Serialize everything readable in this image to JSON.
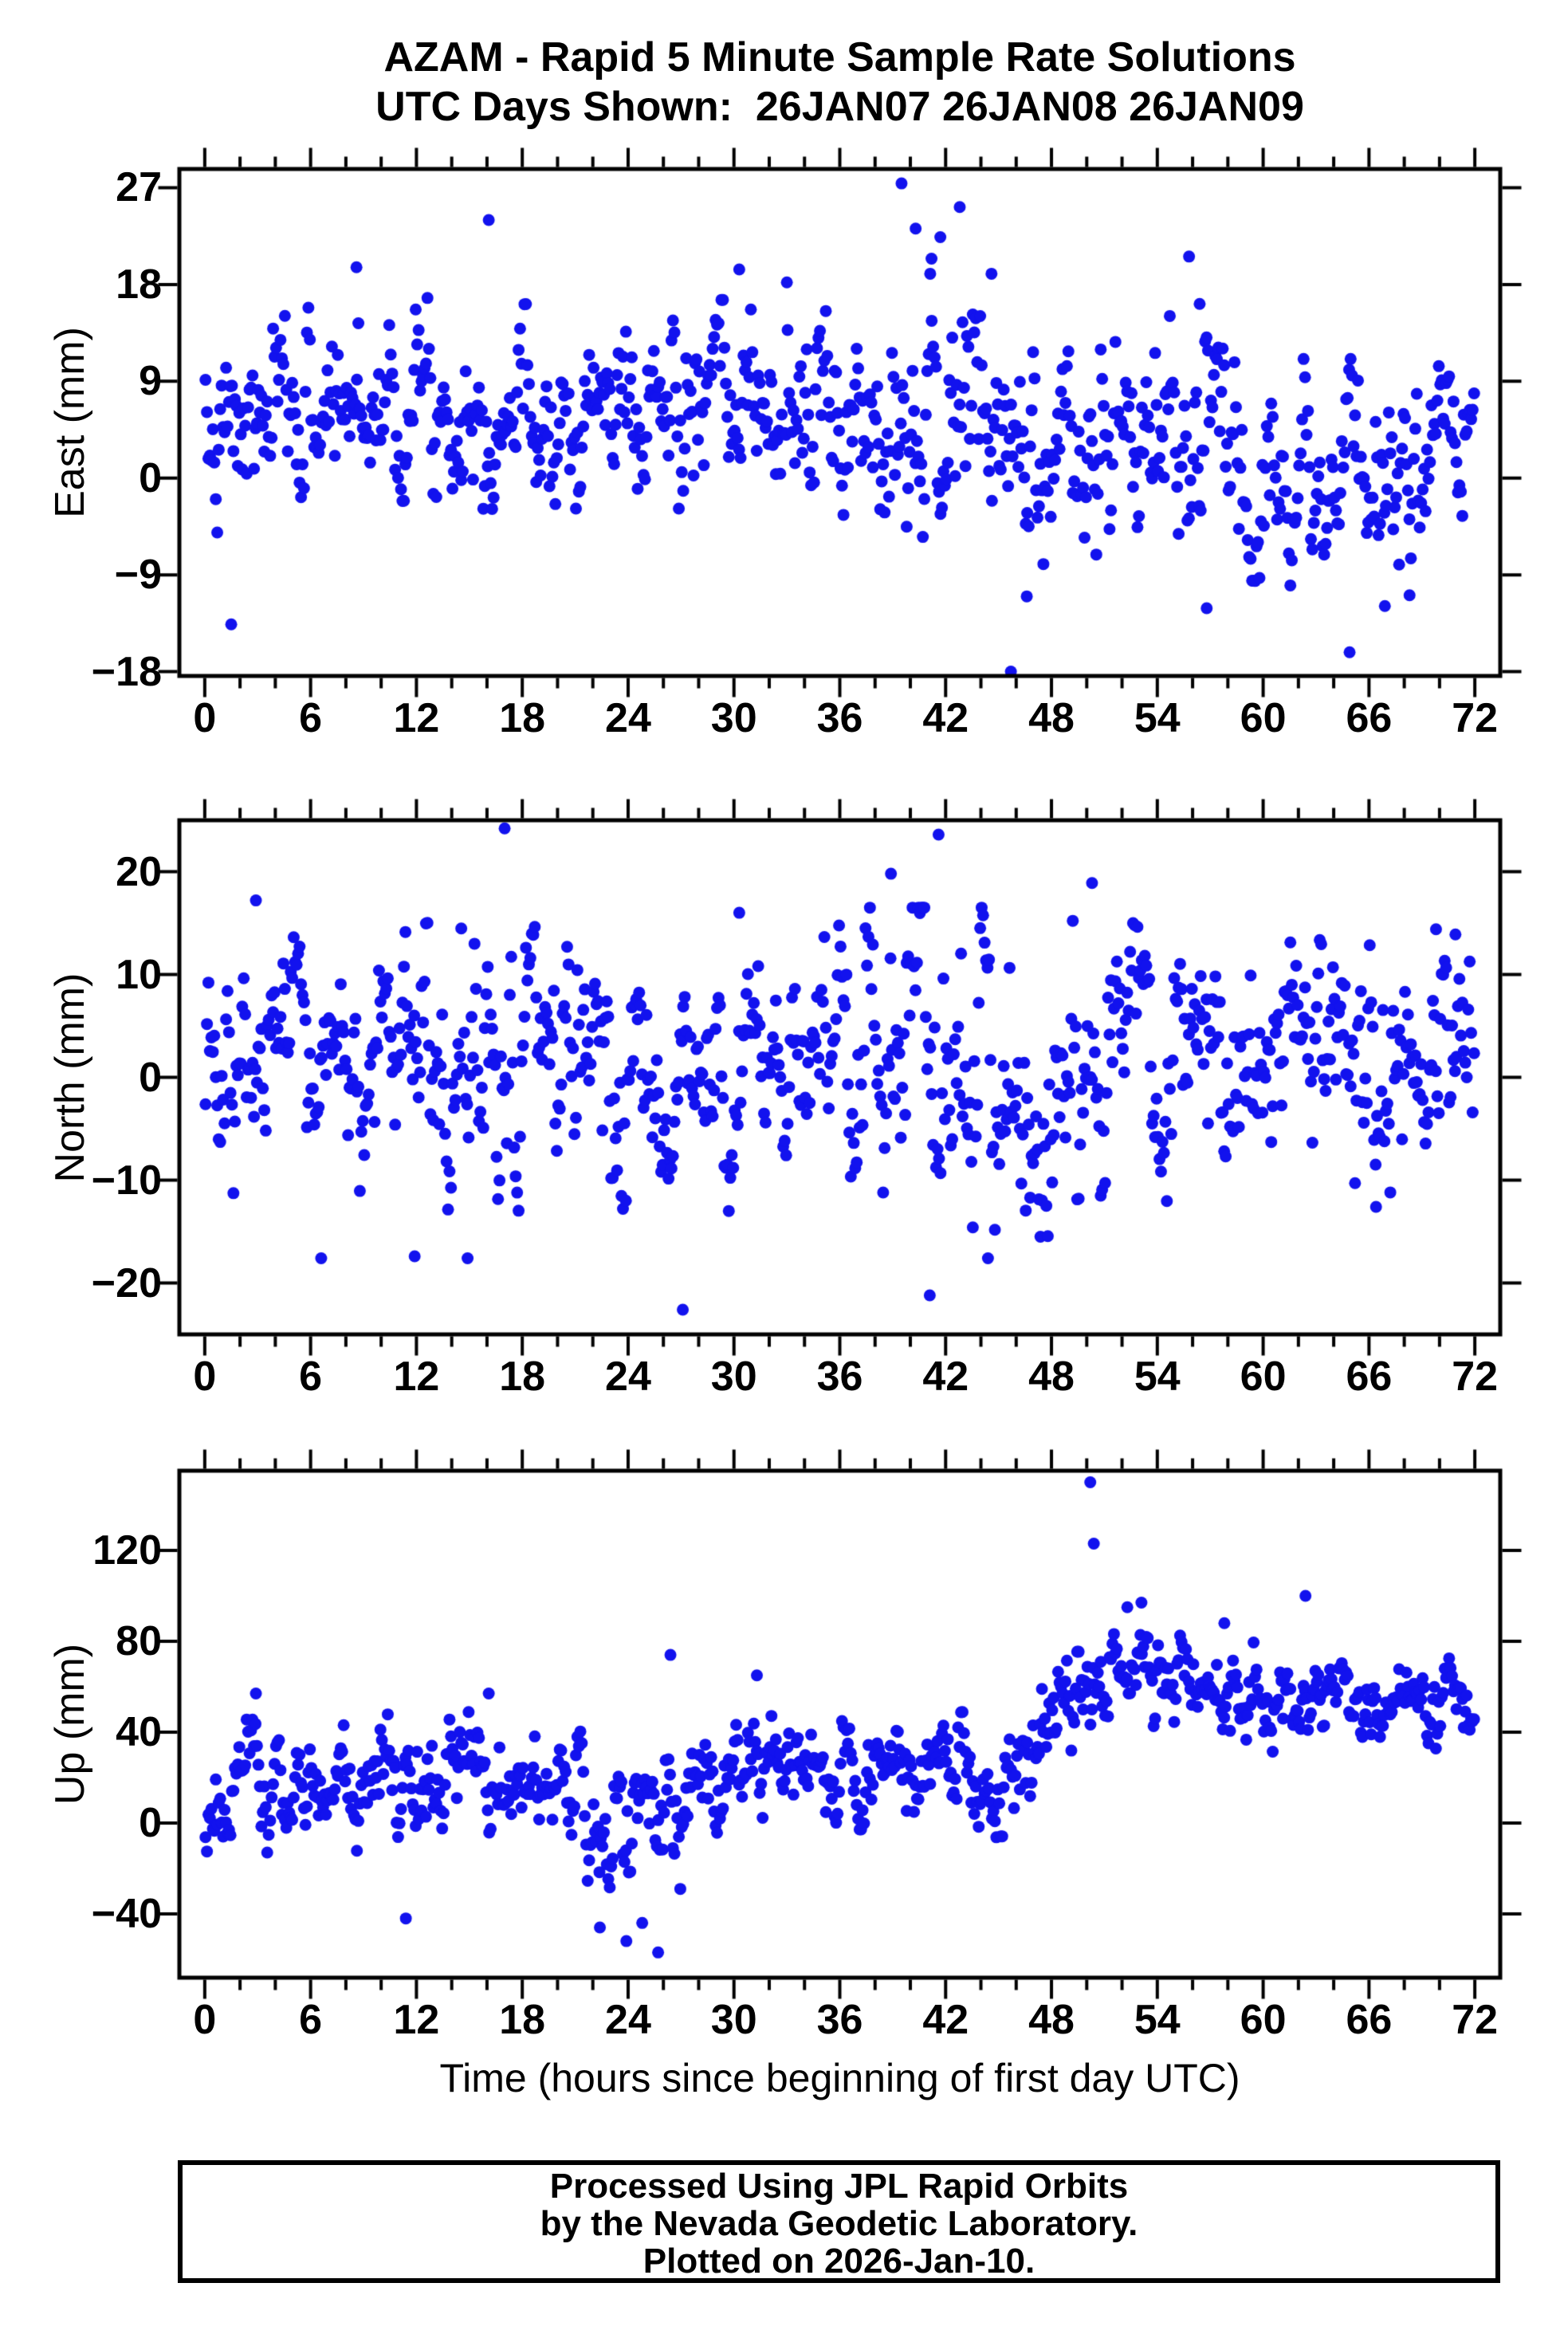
{
  "chart_data": {
    "type": "scatter",
    "title": "AZAM - Rapid 5 Minute Sample Rate Solutions",
    "subtitle": "UTC Days Shown:  26JAN07 26JAN08 26JAN09",
    "xlabel": "Time (hours since beginning of first day UTC)",
    "x_ticks": [
      0,
      6,
      12,
      18,
      24,
      30,
      36,
      42,
      48,
      54,
      60,
      66,
      72
    ],
    "x_minor_step": 2,
    "xlim_axis": [
      -1.44,
      73.44
    ],
    "x_data_range": [
      0,
      72
    ],
    "n_points_per_panel": 864,
    "sample_interval_hours": 0.0833,
    "marker": {
      "shape": "circle",
      "radius_px": 7.5,
      "color": "#1212ee"
    },
    "frame_color": "#000000",
    "grid": false,
    "legend": "none",
    "panels": [
      {
        "id": "east",
        "ylabel": "East (mm)",
        "ylim": [
          -18.4,
          28.74
        ],
        "yticks": [
          27,
          18,
          9,
          0,
          -9,
          -18
        ],
        "seed": 7,
        "base_clip": [
          -12.5,
          19
        ],
        "trend_anchors": [
          [
            0,
            1.5,
            3.5
          ],
          [
            1.5,
            3,
            4.5
          ],
          [
            4,
            5.5,
            4
          ],
          [
            8,
            7.5,
            4.5
          ],
          [
            12,
            7.5,
            4
          ],
          [
            16,
            6.5,
            4
          ],
          [
            20,
            7,
            4
          ],
          [
            24,
            6.5,
            4.5
          ],
          [
            28,
            6,
            4.5
          ],
          [
            32,
            6,
            4.5
          ],
          [
            36,
            5.5,
            4.5
          ],
          [
            40,
            7.5,
            6
          ],
          [
            43,
            6,
            6
          ],
          [
            46,
            2.5,
            5
          ],
          [
            50,
            2.5,
            4.5
          ],
          [
            54,
            3.5,
            5
          ],
          [
            58,
            2.5,
            5
          ],
          [
            62,
            0.5,
            4.5
          ],
          [
            66,
            0.5,
            4.5
          ],
          [
            70,
            1,
            4
          ],
          [
            72,
            1.5,
            3.5
          ]
        ],
        "outliers": [
          [
            1.5,
            -13.6
          ],
          [
            8.6,
            19.6
          ],
          [
            16.1,
            24.0
          ],
          [
            30.3,
            19.4
          ],
          [
            33.0,
            18.2
          ],
          [
            39.5,
            27.4
          ],
          [
            40.3,
            23.2
          ],
          [
            41.2,
            20.4
          ],
          [
            41.7,
            22.4
          ],
          [
            42.8,
            25.2
          ],
          [
            44.6,
            19.0
          ],
          [
            45.7,
            -18.0
          ],
          [
            46.6,
            -11.0
          ],
          [
            55.8,
            20.6
          ],
          [
            56.4,
            16.2
          ],
          [
            56.8,
            -12.1
          ],
          [
            64.9,
            -16.2
          ],
          [
            66.9,
            -11.9
          ],
          [
            68.3,
            -10.9
          ]
        ]
      },
      {
        "id": "north",
        "ylabel": "North (mm)",
        "ylim": [
          -25,
          25
        ],
        "yticks": [
          20,
          10,
          0,
          -10,
          -20
        ],
        "seed": 13,
        "base_clip": [
          -15.5,
          16.5
        ],
        "trend_anchors": [
          [
            0,
            -0.5,
            4
          ],
          [
            3,
            0.5,
            5.5
          ],
          [
            8,
            1,
            5.5
          ],
          [
            12,
            0.5,
            6
          ],
          [
            16,
            2,
            6.5
          ],
          [
            20,
            1.5,
            6
          ],
          [
            24,
            -0.5,
            6
          ],
          [
            28,
            -0.5,
            5.5
          ],
          [
            32,
            0.5,
            5.5
          ],
          [
            36,
            0.5,
            6.5
          ],
          [
            40,
            0,
            8
          ],
          [
            44,
            -1,
            7.5
          ],
          [
            48,
            0,
            6.5
          ],
          [
            52,
            1,
            6
          ],
          [
            56,
            1.5,
            5.5
          ],
          [
            60,
            2,
            5
          ],
          [
            64,
            1.5,
            5
          ],
          [
            68,
            1.5,
            5.5
          ],
          [
            72,
            3,
            5
          ]
        ],
        "outliers": [
          [
            2.9,
            17.2
          ],
          [
            6.6,
            -17.6
          ],
          [
            11.9,
            -17.4
          ],
          [
            14.9,
            -17.6
          ],
          [
            17.0,
            24.2
          ],
          [
            27.1,
            -22.6
          ],
          [
            30.3,
            16.0
          ],
          [
            38.9,
            19.8
          ],
          [
            41.1,
            -21.2
          ],
          [
            41.6,
            23.6
          ],
          [
            44.4,
            -17.6
          ],
          [
            50.3,
            18.9
          ],
          [
            66.4,
            -12.6
          ],
          [
            69.8,
            14.4
          ],
          [
            70.9,
            13.9
          ]
        ]
      },
      {
        "id": "up",
        "ylabel": "Up (mm)",
        "ylim": [
          -68.1,
          155.1
        ],
        "yticks": [
          120,
          80,
          40,
          0,
          -40
        ],
        "seed": 21,
        "base_clip": [
          -38,
          92
        ],
        "trend_anchors": [
          [
            0,
            5,
            12
          ],
          [
            2,
            15,
            13
          ],
          [
            6,
            15,
            13
          ],
          [
            10,
            17,
            13
          ],
          [
            14,
            20,
            13
          ],
          [
            18,
            22,
            12
          ],
          [
            21,
            12,
            14
          ],
          [
            24,
            2,
            18
          ],
          [
            26,
            5,
            20
          ],
          [
            28,
            18,
            14
          ],
          [
            31,
            25,
            13
          ],
          [
            34,
            20,
            12
          ],
          [
            38,
            22,
            12
          ],
          [
            42,
            20,
            12
          ],
          [
            45,
            22,
            12
          ],
          [
            47,
            30,
            14
          ],
          [
            48.5,
            55,
            14
          ],
          [
            50,
            68,
            12
          ],
          [
            53,
            70,
            11
          ],
          [
            56,
            62,
            10
          ],
          [
            60,
            55,
            10
          ],
          [
            64,
            52,
            9
          ],
          [
            68,
            55,
            9
          ],
          [
            72,
            55,
            10
          ]
        ],
        "outliers": [
          [
            2.9,
            57
          ],
          [
            11.4,
            -42
          ],
          [
            16.1,
            57
          ],
          [
            22.4,
            -46
          ],
          [
            23.9,
            -52
          ],
          [
            24.8,
            -44
          ],
          [
            25.7,
            -57
          ],
          [
            26.4,
            74
          ],
          [
            31.3,
            65
          ],
          [
            50.2,
            150
          ],
          [
            50.4,
            123
          ],
          [
            52.3,
            95
          ],
          [
            53.1,
            97
          ],
          [
            57.8,
            88
          ],
          [
            62.4,
            100
          ]
        ]
      }
    ]
  },
  "footer": {
    "lines": [
      "Processed Using JPL Rapid Orbits",
      "by the Nevada Geodetic Laboratory.",
      "Plotted on 2026-Jan-10."
    ]
  }
}
